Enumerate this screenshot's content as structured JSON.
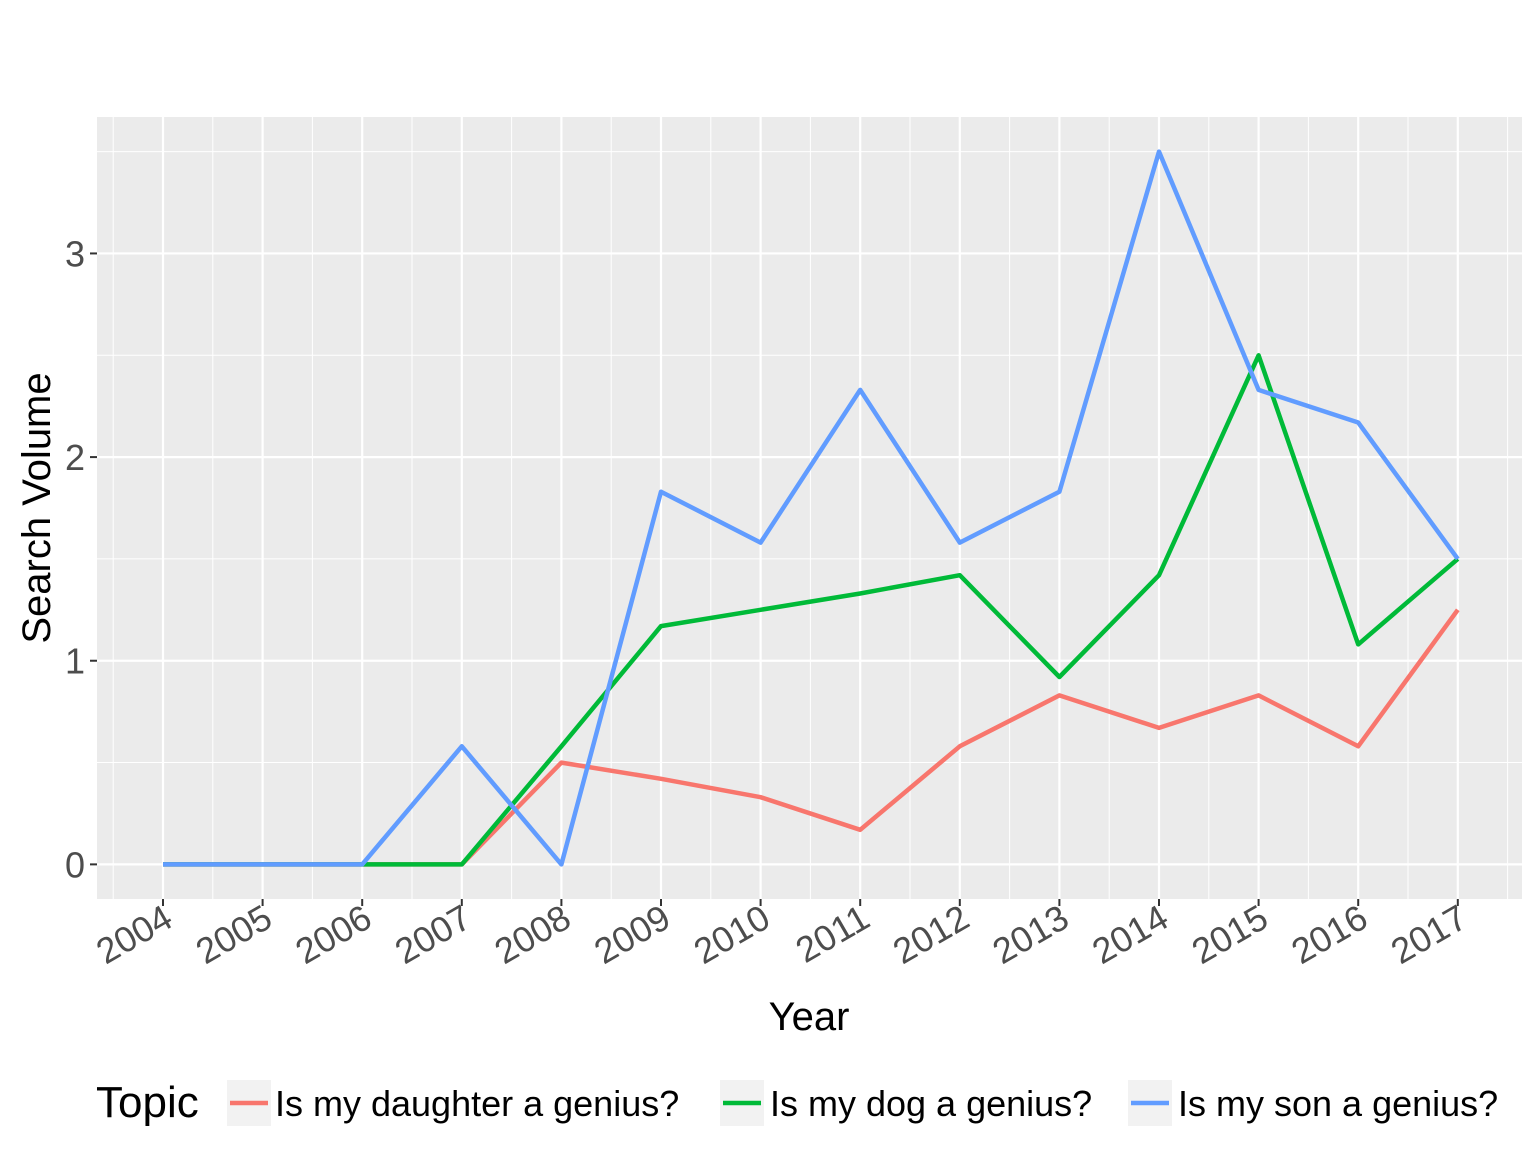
{
  "chart_data": {
    "type": "line",
    "xlabel": "Year",
    "ylabel": "Search Volume",
    "x": [
      "2004",
      "2005",
      "2006",
      "2007",
      "2008",
      "2009",
      "2010",
      "2011",
      "2012",
      "2013",
      "2014",
      "2015",
      "2016",
      "2017"
    ],
    "yticks": [
      "0",
      "1",
      "2",
      "3"
    ],
    "ylim": [
      -0.17,
      3.67
    ],
    "grid": true,
    "legend": {
      "title": "Topic",
      "position": "bottom"
    },
    "series": [
      {
        "name": "Is my daughter a genius?",
        "color": "#F8766D",
        "values": [
          0,
          0,
          0,
          0,
          0.5,
          0.42,
          0.33,
          0.17,
          0.58,
          0.83,
          0.67,
          0.83,
          0.58,
          1.25
        ]
      },
      {
        "name": "Is my dog a genius?",
        "color": "#00BA38",
        "values": [
          0,
          0,
          0,
          0,
          0.58,
          1.17,
          1.25,
          1.33,
          1.42,
          0.92,
          1.42,
          2.5,
          1.08,
          1.5
        ]
      },
      {
        "name": "Is my son a genius?",
        "color": "#619CFF",
        "values": [
          0,
          0,
          0,
          0.58,
          0,
          1.83,
          1.58,
          2.33,
          1.58,
          1.83,
          3.5,
          2.33,
          2.17,
          1.5
        ]
      }
    ]
  }
}
